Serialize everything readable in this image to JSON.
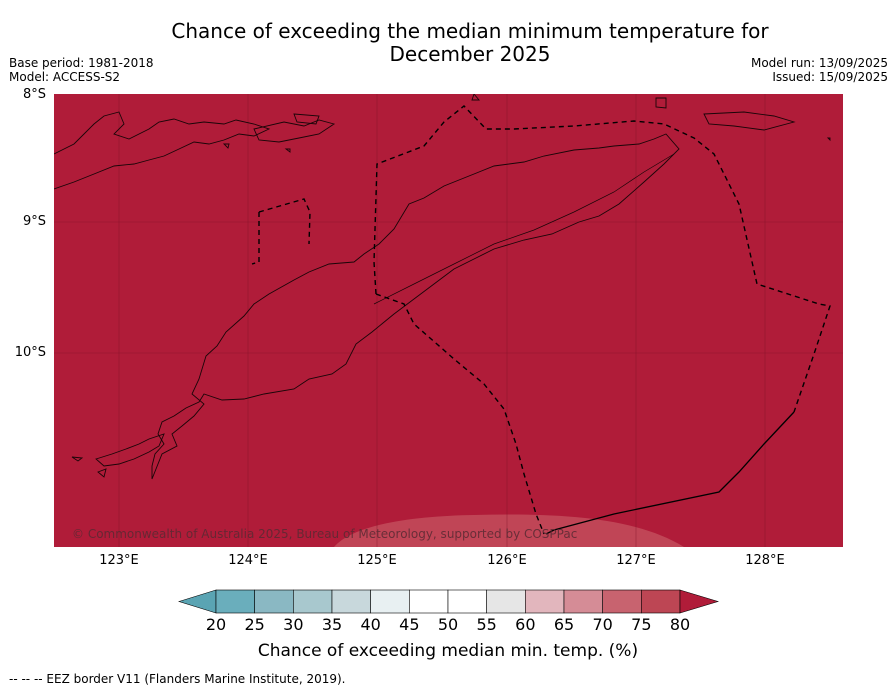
{
  "title_line1": "Chance of exceeding the median minimum temperature for",
  "title_line2": "December 2025",
  "meta_left": {
    "base_period": "Base period: 1981-2018",
    "model": "Model: ACCESS-S2"
  },
  "meta_right": {
    "model_run": "Model run: 13/09/2025",
    "issued": "Issued: 15/09/2025"
  },
  "map": {
    "background_color": "#b01c39",
    "lat_labels": [
      "8°S",
      "9°S",
      "10°S"
    ],
    "lon_labels": [
      "123°E",
      "124°E",
      "125°E",
      "126°E",
      "127°E",
      "128°E"
    ],
    "copyright": "© Commonwealth of Australia 2025, Bureau of Meteorology, supported by COSPPac"
  },
  "colorbar": {
    "ticks": [
      "20",
      "25",
      "30",
      "35",
      "40",
      "45",
      "50",
      "55",
      "60",
      "65",
      "70",
      "75",
      "80"
    ],
    "colors": [
      "#5aa4b3",
      "#6aaebc",
      "#8ab8c3",
      "#a8c8ce",
      "#c8d8dc",
      "#e8f0f2",
      "#ffffff",
      "#ffffff",
      "#e6e6e6",
      "#e2b6bd",
      "#d58c96",
      "#c8636f",
      "#bd4654",
      "#b01c39"
    ],
    "label": "Chance of exceeding median min. temp. (%)"
  },
  "footer": "--  --  -- EEZ border V11 (Flanders Marine Institute, 2019)."
}
